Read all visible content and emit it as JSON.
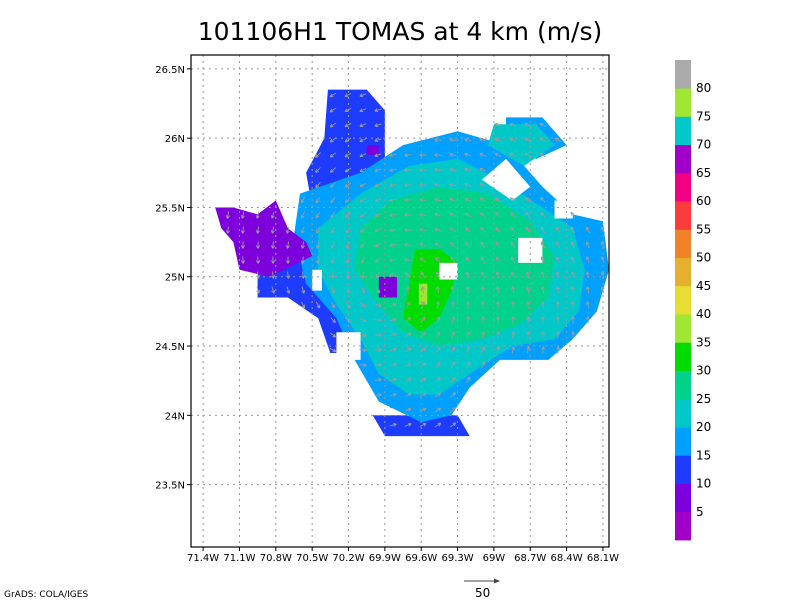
{
  "title": "101106H1 TOMAS at 4 km (m/s)",
  "credit": "GrADS: COLA/IGES",
  "reference_vector": {
    "label": "50",
    "speed": 50,
    "units": "m/s"
  },
  "chart_data": {
    "type": "heatmap",
    "title": "101106H1 TOMAS at 4 km (m/s)",
    "storm": "TOMAS",
    "level": "4 km",
    "units": "m/s",
    "xlim": [
      -71.5,
      -68.05
    ],
    "ylim": [
      23.05,
      26.6
    ],
    "x_ticks": [
      {
        "value": -71.4,
        "label": "71.4W"
      },
      {
        "value": -71.1,
        "label": "71.1W"
      },
      {
        "value": -70.8,
        "label": "70.8W"
      },
      {
        "value": -70.5,
        "label": "70.5W"
      },
      {
        "value": -70.2,
        "label": "70.2W"
      },
      {
        "value": -69.9,
        "label": "69.9W"
      },
      {
        "value": -69.6,
        "label": "69.6W"
      },
      {
        "value": -69.3,
        "label": "69.3W"
      },
      {
        "value": -69.0,
        "label": "69W"
      },
      {
        "value": -68.7,
        "label": "68.7W"
      },
      {
        "value": -68.4,
        "label": "68.4W"
      },
      {
        "value": -68.1,
        "label": "68.1W"
      }
    ],
    "y_ticks": [
      {
        "value": 23.5,
        "label": "23.5N"
      },
      {
        "value": 24.0,
        "label": "24N"
      },
      {
        "value": 24.5,
        "label": "24.5N"
      },
      {
        "value": 25.0,
        "label": "25N"
      },
      {
        "value": 25.5,
        "label": "25.5N"
      },
      {
        "value": 26.0,
        "label": "26N"
      },
      {
        "value": 26.5,
        "label": "26.5N"
      }
    ],
    "grid": true,
    "center": {
      "lon": -69.85,
      "lat": 24.93
    },
    "colorbar": {
      "placement": "right",
      "bins": [
        {
          "min": 0,
          "max": 5,
          "color": "#a000c8"
        },
        {
          "min": 5,
          "max": 10,
          "color": "#7d00dc"
        },
        {
          "min": 10,
          "max": 15,
          "color": "#1e3cff"
        },
        {
          "min": 15,
          "max": 20,
          "color": "#00a0ff"
        },
        {
          "min": 20,
          "max": 25,
          "color": "#00c8c8"
        },
        {
          "min": 25,
          "max": 30,
          "color": "#00d28c"
        },
        {
          "min": 30,
          "max": 35,
          "color": "#00dc00"
        },
        {
          "min": 35,
          "max": 40,
          "color": "#a0e632"
        },
        {
          "min": 40,
          "max": 45,
          "color": "#e6dc32"
        },
        {
          "min": 45,
          "max": 50,
          "color": "#e6af2d"
        },
        {
          "min": 50,
          "max": 55,
          "color": "#f08228"
        },
        {
          "min": 55,
          "max": 60,
          "color": "#fa3c3c"
        },
        {
          "min": 60,
          "max": 65,
          "color": "#f00082"
        },
        {
          "min": 65,
          "max": 70,
          "color": "#a000c8"
        },
        {
          "min": 70,
          "max": 75,
          "color": "#00c8c8"
        },
        {
          "min": 75,
          "max": 80,
          "color": "#a0e632"
        },
        {
          "min": 80,
          "max": 85,
          "color": "#aaaaaa"
        }
      ],
      "labels": [
        {
          "value": 5,
          "label": "5"
        },
        {
          "value": 10,
          "label": "10"
        },
        {
          "value": 15,
          "label": "15"
        },
        {
          "value": 20,
          "label": "20"
        },
        {
          "value": 25,
          "label": "25"
        },
        {
          "value": 30,
          "label": "30"
        },
        {
          "value": 35,
          "label": "35"
        },
        {
          "value": 40,
          "label": "40"
        },
        {
          "value": 45,
          "label": "45"
        },
        {
          "value": 50,
          "label": "50"
        },
        {
          "value": 55,
          "label": "55"
        },
        {
          "value": 60,
          "label": "60"
        },
        {
          "value": 65,
          "label": "65"
        },
        {
          "value": 70,
          "label": "70"
        },
        {
          "value": 75,
          "label": "75"
        },
        {
          "value": 80,
          "label": "80"
        }
      ]
    },
    "wind_regions": [
      {
        "speed_class": "10-15",
        "color": "#1e3cff",
        "polygon": [
          [
            -70.37,
            26.35
          ],
          [
            -70.05,
            26.35
          ],
          [
            -69.9,
            26.2
          ],
          [
            -69.9,
            25.85
          ],
          [
            -70.3,
            25.45
          ],
          [
            -70.5,
            25.5
          ],
          [
            -70.55,
            25.75
          ],
          [
            -70.4,
            26.0
          ]
        ]
      },
      {
        "speed_class": "10-15",
        "color": "#1e3cff",
        "polygon": [
          [
            -70.95,
            25.1
          ],
          [
            -70.6,
            25.15
          ],
          [
            -70.25,
            24.95
          ],
          [
            -70.0,
            24.55
          ],
          [
            -69.7,
            24.35
          ],
          [
            -69.6,
            24.2
          ],
          [
            -69.85,
            24.05
          ],
          [
            -70.0,
            24.25
          ],
          [
            -70.15,
            24.45
          ],
          [
            -70.35,
            24.45
          ],
          [
            -70.45,
            24.7
          ],
          [
            -70.7,
            24.85
          ],
          [
            -70.95,
            24.85
          ]
        ]
      },
      {
        "speed_class": "10-15",
        "color": "#1e3cff",
        "polygon": [
          [
            -70.0,
            24.0
          ],
          [
            -69.3,
            24.0
          ],
          [
            -69.2,
            23.85
          ],
          [
            -69.9,
            23.85
          ]
        ]
      },
      {
        "speed_class": "15-20",
        "color": "#00a0ff",
        "polygon": [
          [
            -70.6,
            25.6
          ],
          [
            -70.1,
            25.75
          ],
          [
            -69.75,
            25.95
          ],
          [
            -69.3,
            26.05
          ],
          [
            -68.9,
            25.95
          ],
          [
            -68.6,
            25.65
          ],
          [
            -68.35,
            25.45
          ],
          [
            -68.1,
            25.4
          ],
          [
            -68.05,
            25.05
          ],
          [
            -68.15,
            24.75
          ],
          [
            -68.35,
            24.55
          ],
          [
            -68.55,
            24.4
          ],
          [
            -68.95,
            24.4
          ],
          [
            -69.2,
            24.2
          ],
          [
            -69.35,
            24.0
          ],
          [
            -69.6,
            23.95
          ],
          [
            -69.95,
            24.1
          ],
          [
            -70.15,
            24.4
          ],
          [
            -70.3,
            24.7
          ],
          [
            -70.55,
            24.95
          ],
          [
            -70.65,
            25.3
          ]
        ]
      },
      {
        "speed_class": "15-20",
        "color": "#00a0ff",
        "polygon": [
          [
            -68.9,
            26.15
          ],
          [
            -68.6,
            26.15
          ],
          [
            -68.4,
            25.95
          ],
          [
            -68.65,
            25.85
          ],
          [
            -68.9,
            25.95
          ]
        ]
      },
      {
        "speed_class": "20-25",
        "color": "#00c8c8",
        "polygon": [
          [
            -70.45,
            25.35
          ],
          [
            -70.1,
            25.6
          ],
          [
            -69.7,
            25.8
          ],
          [
            -69.3,
            25.85
          ],
          [
            -68.95,
            25.7
          ],
          [
            -68.6,
            25.5
          ],
          [
            -68.35,
            25.35
          ],
          [
            -68.25,
            25.05
          ],
          [
            -68.3,
            24.75
          ],
          [
            -68.5,
            24.55
          ],
          [
            -68.85,
            24.5
          ],
          [
            -69.2,
            24.3
          ],
          [
            -69.45,
            24.15
          ],
          [
            -69.7,
            24.15
          ],
          [
            -69.95,
            24.3
          ],
          [
            -70.1,
            24.55
          ],
          [
            -70.3,
            24.8
          ],
          [
            -70.45,
            25.05
          ]
        ]
      },
      {
        "speed_class": "20-25",
        "color": "#00c8c8",
        "polygon": [
          [
            -69.0,
            26.1
          ],
          [
            -68.65,
            26.1
          ],
          [
            -68.5,
            25.95
          ],
          [
            -68.75,
            25.8
          ],
          [
            -69.05,
            25.95
          ]
        ]
      },
      {
        "speed_class": "25-30",
        "color": "#00d28c",
        "polygon": [
          [
            -70.1,
            25.35
          ],
          [
            -69.85,
            25.55
          ],
          [
            -69.45,
            25.65
          ],
          [
            -69.05,
            25.6
          ],
          [
            -68.7,
            25.4
          ],
          [
            -68.5,
            25.15
          ],
          [
            -68.55,
            24.85
          ],
          [
            -68.8,
            24.65
          ],
          [
            -69.1,
            24.55
          ],
          [
            -69.45,
            24.5
          ],
          [
            -69.75,
            24.6
          ],
          [
            -69.95,
            24.8
          ],
          [
            -70.15,
            25.05
          ]
        ]
      },
      {
        "speed_class": "30-35",
        "color": "#00dc00",
        "polygon": [
          [
            -69.65,
            25.2
          ],
          [
            -69.45,
            25.2
          ],
          [
            -69.3,
            25.1
          ],
          [
            -69.35,
            24.9
          ],
          [
            -69.45,
            24.7
          ],
          [
            -69.6,
            24.6
          ],
          [
            -69.75,
            24.7
          ],
          [
            -69.7,
            24.95
          ]
        ]
      },
      {
        "speed_class": "35-40",
        "color": "#a0e632",
        "polygon": [
          [
            -69.62,
            24.95
          ],
          [
            -69.55,
            24.95
          ],
          [
            -69.55,
            24.8
          ],
          [
            -69.62,
            24.8
          ]
        ]
      },
      {
        "speed_class": "5-10",
        "color": "#7d00dc",
        "polygon": [
          [
            -71.3,
            25.5
          ],
          [
            -71.15,
            25.5
          ],
          [
            -70.95,
            25.45
          ],
          [
            -70.8,
            25.55
          ],
          [
            -70.7,
            25.35
          ],
          [
            -70.55,
            25.25
          ],
          [
            -70.5,
            25.15
          ],
          [
            -70.85,
            25.0
          ],
          [
            -71.1,
            25.05
          ],
          [
            -71.15,
            25.25
          ],
          [
            -71.25,
            25.35
          ]
        ]
      },
      {
        "speed_class": "5-10",
        "color": "#7d00dc",
        "polygon": [
          [
            -70.05,
            25.95
          ],
          [
            -69.95,
            25.95
          ],
          [
            -69.95,
            25.88
          ],
          [
            -70.05,
            25.88
          ]
        ]
      },
      {
        "speed_class": "5-10",
        "color": "#7d00dc",
        "polygon": [
          [
            -69.95,
            25.0
          ],
          [
            -69.8,
            25.0
          ],
          [
            -69.8,
            24.85
          ],
          [
            -69.95,
            24.85
          ]
        ]
      }
    ],
    "data_gaps": [
      {
        "polygon": [
          [
            -70.5,
            25.05
          ],
          [
            -70.42,
            25.05
          ],
          [
            -70.42,
            24.9
          ],
          [
            -70.5,
            24.9
          ]
        ]
      },
      {
        "polygon": [
          [
            -70.3,
            24.6
          ],
          [
            -70.1,
            24.6
          ],
          [
            -70.1,
            24.4
          ],
          [
            -70.3,
            24.4
          ]
        ]
      },
      {
        "polygon": [
          [
            -69.05,
            24.2
          ],
          [
            -68.95,
            24.2
          ],
          [
            -68.95,
            24.05
          ],
          [
            -69.05,
            24.05
          ]
        ]
      },
      {
        "polygon": [
          [
            -68.8,
            25.28
          ],
          [
            -68.6,
            25.28
          ],
          [
            -68.6,
            25.1
          ],
          [
            -68.8,
            25.1
          ]
        ]
      },
      {
        "polygon": [
          [
            -69.1,
            25.7
          ],
          [
            -68.85,
            25.55
          ],
          [
            -68.7,
            25.65
          ],
          [
            -68.9,
            25.85
          ]
        ]
      },
      {
        "polygon": [
          [
            -69.45,
            25.1
          ],
          [
            -69.3,
            25.1
          ],
          [
            -69.3,
            24.98
          ],
          [
            -69.45,
            24.98
          ]
        ]
      },
      {
        "polygon": [
          [
            -68.5,
            25.55
          ],
          [
            -68.35,
            25.55
          ],
          [
            -68.35,
            25.42
          ],
          [
            -68.5,
            25.42
          ]
        ]
      }
    ],
    "vector_field": {
      "rotation": "counterclockwise",
      "description": "gray wind barbs"
    }
  }
}
